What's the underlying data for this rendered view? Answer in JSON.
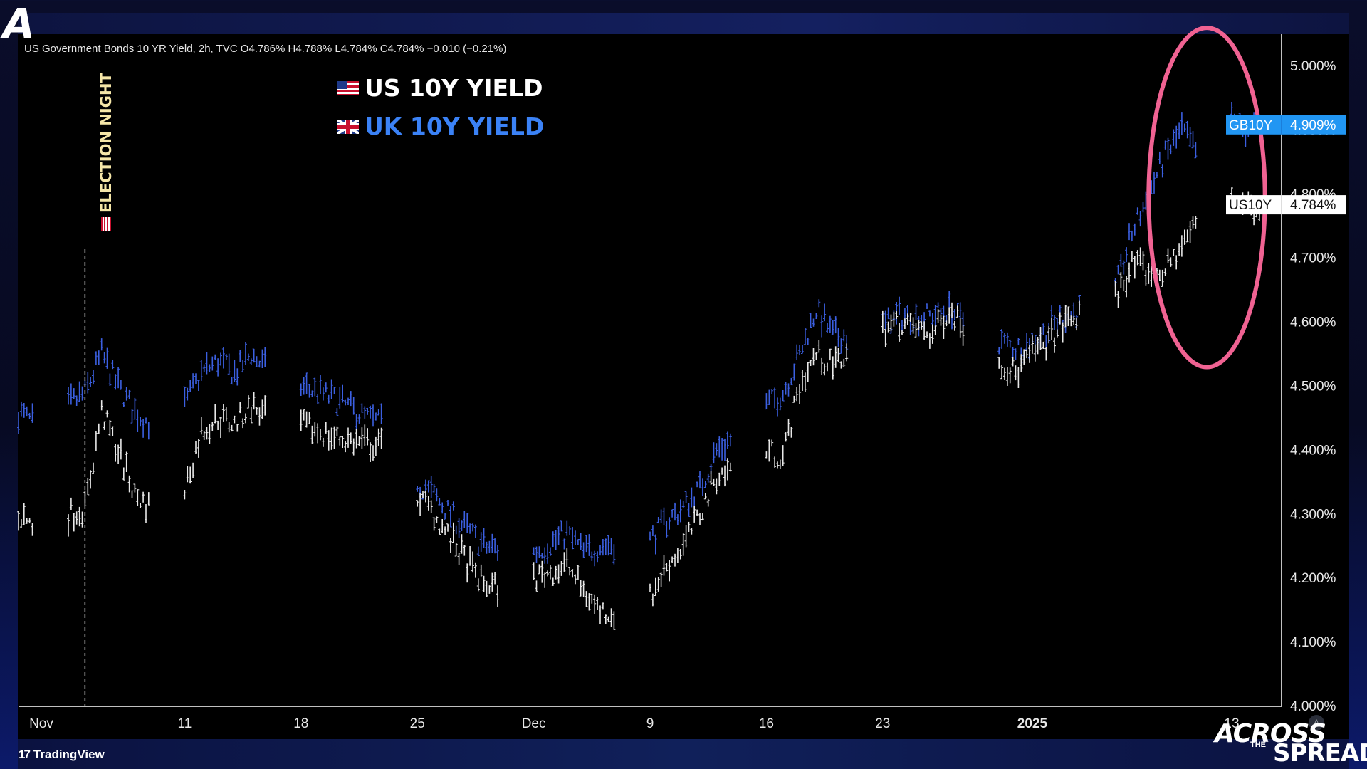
{
  "header": {
    "ohlc_text": "US Government Bonds 10 YR Yield, 2h, TVC  O4.786%  H4.788%  L4.784%  C4.784%  −0.010 (−0.21%)"
  },
  "legend": {
    "us_label": "US 10Y YIELD",
    "uk_label": "UK 10Y YIELD"
  },
  "annotation": {
    "election_text": "ELECTION NIGHT"
  },
  "footer": {
    "tradingview_label": "TradingView",
    "brand_word1": "ACROSS",
    "brand_word2": "THE",
    "brand_word3": "SPREAD",
    "scroll_label": "A"
  },
  "colors": {
    "us_series": "#e8e8e8",
    "uk_series": "#3b5fe0",
    "ellipse": "#f06292",
    "gb_tag": "#2196f3",
    "us_tag": "#ffffff"
  },
  "chart_data": {
    "type": "line",
    "title": "",
    "xlabel": "",
    "ylabel": "",
    "ylim": [
      4.0,
      5.05
    ],
    "x_range": [
      "2024-11-01",
      "2025-01-16"
    ],
    "x_ticks": [
      {
        "label": "Nov",
        "date": "2024-11-01",
        "bold": false
      },
      {
        "label": "11",
        "date": "2024-11-11",
        "bold": false
      },
      {
        "label": "18",
        "date": "2024-11-18",
        "bold": false
      },
      {
        "label": "25",
        "date": "2024-11-25",
        "bold": false
      },
      {
        "label": "Dec",
        "date": "2024-12-02",
        "bold": false
      },
      {
        "label": "9",
        "date": "2024-12-09",
        "bold": false
      },
      {
        "label": "16",
        "date": "2024-12-16",
        "bold": false
      },
      {
        "label": "23",
        "date": "2024-12-23",
        "bold": false
      },
      {
        "label": "2025",
        "date": "2025-01-01",
        "bold": true
      },
      {
        "label": "13",
        "date": "2025-01-13",
        "bold": false
      }
    ],
    "y_ticks": [
      {
        "value": 4.0,
        "label": "4.000%"
      },
      {
        "value": 4.1,
        "label": "4.100%"
      },
      {
        "value": 4.2,
        "label": "4.200%"
      },
      {
        "value": 4.3,
        "label": "4.300%"
      },
      {
        "value": 4.4,
        "label": "4.400%"
      },
      {
        "value": 4.5,
        "label": "4.500%"
      },
      {
        "value": 4.6,
        "label": "4.600%"
      },
      {
        "value": 4.7,
        "label": "4.700%"
      },
      {
        "value": 4.8,
        "label": "4.800%"
      },
      {
        "value": 4.9,
        "label": "4.900%"
      },
      {
        "value": 5.0,
        "label": "5.000%"
      }
    ],
    "grid": false,
    "election_date": "2024-11-05",
    "highlight": {
      "x_from": "2025-01-08",
      "x_to": "2025-01-15",
      "y_from": 4.53,
      "y_to": 5.06
    },
    "price_tags": [
      {
        "name": "GB10Y",
        "value": 4.909,
        "label": "4.909%"
      },
      {
        "name": "US10Y",
        "value": 4.784,
        "label": "4.784%"
      }
    ],
    "series": [
      {
        "name": "US10Y",
        "anchors": [
          [
            "2024-11-01",
            4.3
          ],
          [
            "2024-11-02",
            4.28
          ],
          [
            "2024-11-04",
            4.3
          ],
          [
            "2024-11-05",
            4.31
          ],
          [
            "2024-11-06",
            4.46
          ],
          [
            "2024-11-07",
            4.4
          ],
          [
            "2024-11-08",
            4.33
          ],
          [
            "2024-11-09",
            4.31
          ],
          [
            "2024-11-11",
            4.34
          ],
          [
            "2024-11-12",
            4.43
          ],
          [
            "2024-11-13",
            4.45
          ],
          [
            "2024-11-14",
            4.44
          ],
          [
            "2024-11-15",
            4.47
          ],
          [
            "2024-11-17",
            4.43
          ],
          [
            "2024-11-18",
            4.44
          ],
          [
            "2024-11-20",
            4.42
          ],
          [
            "2024-11-22",
            4.41
          ],
          [
            "2024-11-24",
            4.4
          ],
          [
            "2024-11-25",
            4.33
          ],
          [
            "2024-11-26",
            4.3
          ],
          [
            "2024-11-27",
            4.26
          ],
          [
            "2024-11-29",
            4.19
          ],
          [
            "2024-12-01",
            4.18
          ],
          [
            "2024-12-02",
            4.2
          ],
          [
            "2024-12-04",
            4.22
          ],
          [
            "2024-12-05",
            4.18
          ],
          [
            "2024-12-06",
            4.15
          ],
          [
            "2024-12-08",
            4.14
          ],
          [
            "2024-12-09",
            4.17
          ],
          [
            "2024-12-10",
            4.22
          ],
          [
            "2024-12-11",
            4.25
          ],
          [
            "2024-12-12",
            4.3
          ],
          [
            "2024-12-13",
            4.36
          ],
          [
            "2024-12-15",
            4.38
          ],
          [
            "2024-12-16",
            4.4
          ],
          [
            "2024-12-17",
            4.39
          ],
          [
            "2024-12-18",
            4.5
          ],
          [
            "2024-12-19",
            4.55
          ],
          [
            "2024-12-20",
            4.53
          ],
          [
            "2024-12-22",
            4.58
          ],
          [
            "2024-12-24",
            4.6
          ],
          [
            "2024-12-26",
            4.58
          ],
          [
            "2024-12-27",
            4.62
          ],
          [
            "2024-12-29",
            4.56
          ],
          [
            "2024-12-31",
            4.52
          ],
          [
            "2025-01-01",
            4.55
          ],
          [
            "2025-01-02",
            4.57
          ],
          [
            "2025-01-03",
            4.6
          ],
          [
            "2025-01-05",
            4.62
          ],
          [
            "2025-01-06",
            4.64
          ],
          [
            "2025-01-07",
            4.69
          ],
          [
            "2025-01-08",
            4.68
          ],
          [
            "2025-01-09",
            4.68
          ],
          [
            "2025-01-10",
            4.72
          ],
          [
            "2025-01-11",
            4.76
          ],
          [
            "2025-01-12",
            4.78
          ],
          [
            "2025-01-13",
            4.8
          ],
          [
            "2025-01-14",
            4.78
          ],
          [
            "2025-01-15",
            4.784
          ]
        ]
      },
      {
        "name": "GB10Y",
        "anchors": [
          [
            "2024-11-01",
            4.46
          ],
          [
            "2024-11-02",
            4.44
          ],
          [
            "2024-11-04",
            4.47
          ],
          [
            "2024-11-05",
            4.49
          ],
          [
            "2024-11-06",
            4.55
          ],
          [
            "2024-11-07",
            4.5
          ],
          [
            "2024-11-08",
            4.46
          ],
          [
            "2024-11-09",
            4.44
          ],
          [
            "2024-11-11",
            4.47
          ],
          [
            "2024-11-12",
            4.52
          ],
          [
            "2024-11-13",
            4.54
          ],
          [
            "2024-11-14",
            4.52
          ],
          [
            "2024-11-15",
            4.55
          ],
          [
            "2024-11-17",
            4.5
          ],
          [
            "2024-11-18",
            4.5
          ],
          [
            "2024-11-20",
            4.48
          ],
          [
            "2024-11-22",
            4.45
          ],
          [
            "2024-11-24",
            4.43
          ],
          [
            "2024-11-25",
            4.35
          ],
          [
            "2024-11-26",
            4.33
          ],
          [
            "2024-11-27",
            4.3
          ],
          [
            "2024-11-29",
            4.25
          ],
          [
            "2024-12-01",
            4.24
          ],
          [
            "2024-12-02",
            4.24
          ],
          [
            "2024-12-04",
            4.27
          ],
          [
            "2024-12-05",
            4.24
          ],
          [
            "2024-12-06",
            4.25
          ],
          [
            "2024-12-08",
            4.26
          ],
          [
            "2024-12-09",
            4.26
          ],
          [
            "2024-12-10",
            4.29
          ],
          [
            "2024-12-11",
            4.31
          ],
          [
            "2024-12-12",
            4.34
          ],
          [
            "2024-12-13",
            4.4
          ],
          [
            "2024-12-15",
            4.44
          ],
          [
            "2024-12-16",
            4.47
          ],
          [
            "2024-12-17",
            4.49
          ],
          [
            "2024-12-18",
            4.55
          ],
          [
            "2024-12-19",
            4.62
          ],
          [
            "2024-12-20",
            4.58
          ],
          [
            "2024-12-22",
            4.58
          ],
          [
            "2024-12-24",
            4.61
          ],
          [
            "2024-12-26",
            4.61
          ],
          [
            "2024-12-27",
            4.62
          ],
          [
            "2024-12-29",
            4.58
          ],
          [
            "2024-12-31",
            4.56
          ],
          [
            "2025-01-01",
            4.57
          ],
          [
            "2025-01-02",
            4.59
          ],
          [
            "2025-01-03",
            4.61
          ],
          [
            "2025-01-05",
            4.63
          ],
          [
            "2025-01-06",
            4.65
          ],
          [
            "2025-01-07",
            4.74
          ],
          [
            "2025-01-08",
            4.8
          ],
          [
            "2025-01-09",
            4.86
          ],
          [
            "2025-01-10",
            4.9
          ],
          [
            "2025-01-11",
            4.86
          ],
          [
            "2025-01-12",
            4.88
          ],
          [
            "2025-01-13",
            4.92
          ],
          [
            "2025-01-14",
            4.9
          ],
          [
            "2025-01-15",
            4.909
          ]
        ]
      }
    ]
  }
}
